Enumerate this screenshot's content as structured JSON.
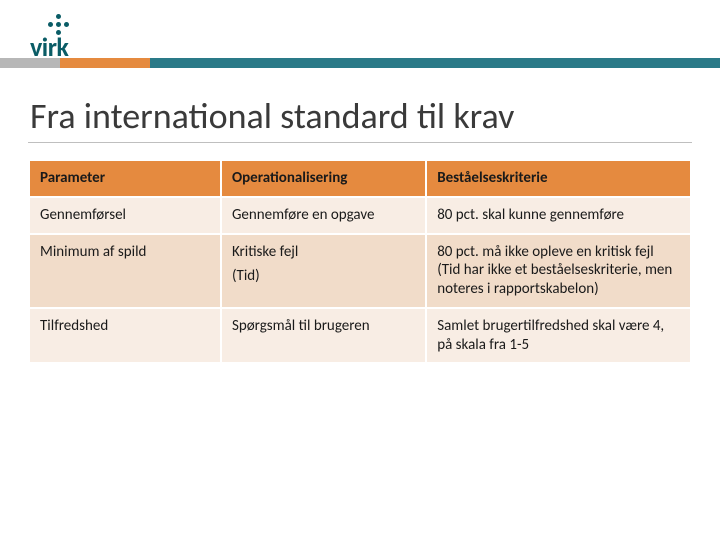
{
  "brand": {
    "name": "virk",
    "logo_color": "#0a5c66"
  },
  "ribbon_colors": {
    "gray": "#b7b7b7",
    "orange": "#e58a3f",
    "teal": "#2a7a88"
  },
  "title": "Fra international standard til krav",
  "table": {
    "header_background": "#e58a3f",
    "row_odd_background": "#f8ede4",
    "row_even_background": "#f1dcc9",
    "border_color": "#ffffff",
    "font_size": 15,
    "columns": [
      {
        "label": "Parameter",
        "width_pct": 29
      },
      {
        "label": "Operationalisering",
        "width_pct": 31
      },
      {
        "label": "Beståelseskriterie",
        "width_pct": 40
      }
    ],
    "rows": [
      {
        "parameter": "Gennemførsel",
        "operationalisering": "Gennemføre en opgave",
        "bestaaelse": "80 pct. skal kunne gennemføre"
      },
      {
        "parameter": "Minimum af spild",
        "operationalisering_line1": "Kritiske fejl",
        "operationalisering_line2": "(Tid)",
        "bestaaelse": "80 pct. må ikke opleve en kritisk fejl\n(Tid har ikke et beståelseskriterie, men noteres i rapportskabelon)"
      },
      {
        "parameter": "Tilfredshed",
        "operationalisering": "Spørgsmål til brugeren",
        "bestaaelse": "Samlet brugertilfredshed skal være 4, på skala fra 1-5"
      }
    ]
  }
}
